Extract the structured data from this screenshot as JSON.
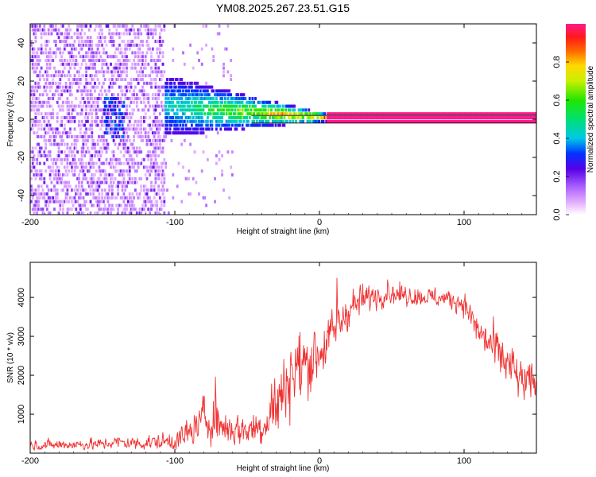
{
  "figure": {
    "title": "YM08.2025.267.23.51.G15"
  },
  "chart_data": [
    {
      "type": "heatmap",
      "xlabel": "Height of straight line (km)",
      "ylabel": "Frequency (Hz)",
      "xlim": [
        -200,
        150
      ],
      "ylim": [
        -50,
        50
      ],
      "xticks": [
        -200,
        -100,
        0,
        100
      ],
      "yticks": [
        -40,
        -20,
        0,
        20,
        40
      ],
      "colorbar": {
        "label": "Normalized spectral amplitude",
        "range": [
          0,
          1
        ],
        "ticks": [
          0.0,
          0.2,
          0.4,
          0.6,
          0.8
        ],
        "tick_labels": [
          "0.0",
          "0.2",
          "0.4",
          "0.6",
          "0.8"
        ],
        "colormap": "rainbow (white to purple to blue to cyan to green to yellow to red to magenta)"
      },
      "features": {
        "noise_region_x": [
          -200,
          -107
        ],
        "transition_region_x": [
          -107,
          5
        ],
        "clean_signal_x": [
          5,
          150
        ],
        "signal_frequency_hz": 0,
        "signal_amplitude": 1.0,
        "signal_band_lines_hz": [
          -2,
          2
        ]
      }
    },
    {
      "type": "line",
      "xlabel": "Height of straight line (km)",
      "ylabel": "SNR (10 * v/v)",
      "xlim": [
        -200,
        150
      ],
      "ylim": [
        0,
        4900
      ],
      "xticks": [
        -200,
        -100,
        0,
        100
      ],
      "yticks": [
        1000,
        2000,
        3000,
        4000
      ],
      "color": "#f03232",
      "envelope": {
        "x": [
          -200,
          -150,
          -140,
          -130,
          -100,
          -90,
          -80,
          -70,
          -60,
          -50,
          -40,
          -30,
          -25,
          -20,
          -10,
          0,
          10,
          20,
          30,
          40,
          50,
          60,
          70,
          80,
          90,
          100,
          110,
          120,
          130,
          140,
          150
        ],
        "y": [
          200,
          230,
          290,
          250,
          310,
          500,
          900,
          750,
          600,
          600,
          700,
          1200,
          1600,
          2000,
          2300,
          2600,
          3100,
          3700,
          3950,
          4050,
          4100,
          4050,
          4020,
          4000,
          3950,
          3850,
          3100,
          2700,
          2300,
          1800,
          1800
        ]
      },
      "noise_sigma": {
        "x": [
          -200,
          -140,
          -100,
          -80,
          -70,
          -50,
          -30,
          -15,
          0,
          20,
          40,
          70,
          100,
          110,
          130,
          150
        ],
        "y": [
          80,
          100,
          150,
          380,
          300,
          250,
          500,
          650,
          450,
          300,
          180,
          150,
          170,
          300,
          400,
          300
        ]
      },
      "spikes": [
        {
          "x": -72,
          "y": 2300
        },
        {
          "x": 12,
          "y": 4850
        },
        {
          "x": -20,
          "y": 2950
        },
        {
          "x": 47,
          "y": 4620
        },
        {
          "x": -33,
          "y": 1950
        }
      ]
    }
  ]
}
